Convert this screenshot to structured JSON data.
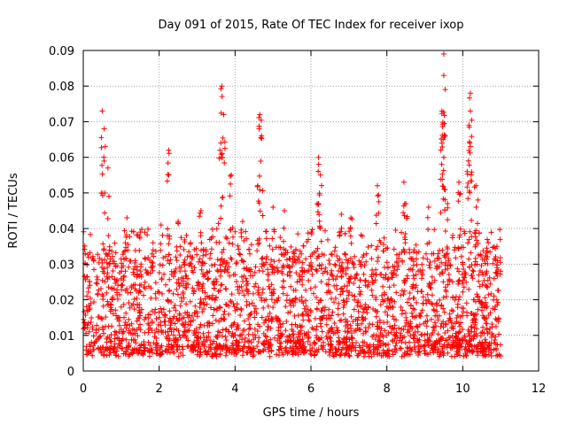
{
  "chart_data": {
    "type": "scatter",
    "title": "Day 091 of 2015, Rate Of TEC Index for receiver ixop",
    "xlabel": "GPS time / hours",
    "ylabel": "ROTI / TECUs",
    "xlim": [
      0,
      12
    ],
    "ylim": [
      0,
      0.09
    ],
    "xticks": [
      "0",
      "2",
      "4",
      "6",
      "8",
      "10",
      "12"
    ],
    "yticks": [
      "0",
      "0.01",
      "0.02",
      "0.03",
      "0.04",
      "0.05",
      "0.06",
      "0.07",
      "0.08",
      "0.09"
    ],
    "grid": true,
    "marker": "plus",
    "color": "#ff0000",
    "series": [
      {
        "name": "ROTI",
        "x_range": [
          0.0,
          11.0
        ],
        "typical_band": [
          0.005,
          0.03
        ],
        "peaks": [
          {
            "x": 0.5,
            "y": 0.073
          },
          {
            "x": 0.55,
            "y": 0.068
          },
          {
            "x": 0.65,
            "y": 0.057
          },
          {
            "x": 1.15,
            "y": 0.043
          },
          {
            "x": 1.5,
            "y": 0.039
          },
          {
            "x": 2.05,
            "y": 0.041
          },
          {
            "x": 2.25,
            "y": 0.062
          },
          {
            "x": 2.25,
            "y": 0.055
          },
          {
            "x": 2.5,
            "y": 0.042
          },
          {
            "x": 3.1,
            "y": 0.045
          },
          {
            "x": 3.65,
            "y": 0.08
          },
          {
            "x": 3.7,
            "y": 0.072
          },
          {
            "x": 3.6,
            "y": 0.062
          },
          {
            "x": 3.9,
            "y": 0.055
          },
          {
            "x": 4.2,
            "y": 0.042
          },
          {
            "x": 4.65,
            "y": 0.072
          },
          {
            "x": 4.7,
            "y": 0.066
          },
          {
            "x": 4.6,
            "y": 0.052
          },
          {
            "x": 5.0,
            "y": 0.046
          },
          {
            "x": 5.3,
            "y": 0.045
          },
          {
            "x": 6.2,
            "y": 0.06
          },
          {
            "x": 6.25,
            "y": 0.055
          },
          {
            "x": 6.2,
            "y": 0.047
          },
          {
            "x": 6.8,
            "y": 0.044
          },
          {
            "x": 7.05,
            "y": 0.043
          },
          {
            "x": 7.75,
            "y": 0.052
          },
          {
            "x": 8.45,
            "y": 0.053
          },
          {
            "x": 8.5,
            "y": 0.047
          },
          {
            "x": 9.1,
            "y": 0.046
          },
          {
            "x": 9.5,
            "y": 0.089
          },
          {
            "x": 9.5,
            "y": 0.083
          },
          {
            "x": 9.45,
            "y": 0.073
          },
          {
            "x": 9.45,
            "y": 0.064
          },
          {
            "x": 9.5,
            "y": 0.06
          },
          {
            "x": 9.6,
            "y": 0.047
          },
          {
            "x": 9.9,
            "y": 0.053
          },
          {
            "x": 10.2,
            "y": 0.078
          },
          {
            "x": 10.2,
            "y": 0.073
          },
          {
            "x": 10.2,
            "y": 0.063
          },
          {
            "x": 10.15,
            "y": 0.059
          },
          {
            "x": 10.35,
            "y": 0.052
          },
          {
            "x": 10.4,
            "y": 0.048
          },
          {
            "x": 10.9,
            "y": 0.035
          }
        ]
      }
    ]
  }
}
